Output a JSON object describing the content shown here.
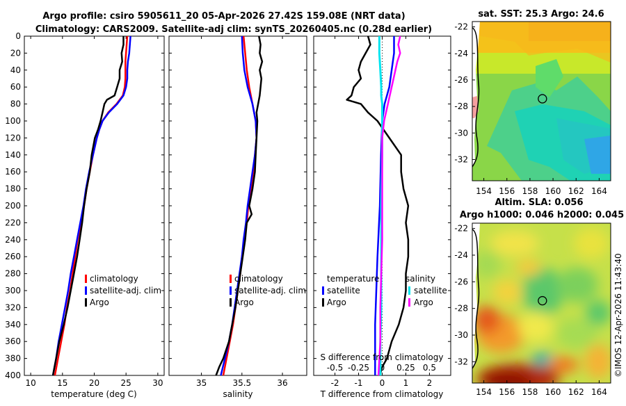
{
  "title": {
    "line1": "Argo profile: csiro 5905611_20 05-Apr-2026 27.42S 159.08E (NRT data)",
    "line2": "Climatology: CARS2009. Satellite-adj clim: synTS_20260405.nc (0.28d earlier)"
  },
  "watermark": "©IMOS 12-Apr-2026 11:43:40",
  "colors": {
    "clim": "#ff0000",
    "sat": "#0000ff",
    "argo": "#000000",
    "sal_sat": "#00e5f0",
    "sal_argo": "#ff00ff"
  },
  "chart_data": [
    {
      "type": "line",
      "name": "temperature-profile",
      "xlabel": "temperature (deg C)",
      "ylabel": "",
      "xlim": [
        9,
        31
      ],
      "ylim": [
        400,
        0
      ],
      "xticks": [
        "10",
        "15",
        "20",
        "25",
        "30"
      ],
      "yticks": [
        "0",
        "20",
        "40",
        "60",
        "80",
        "100",
        "120",
        "140",
        "160",
        "180",
        "200",
        "220",
        "240",
        "260",
        "280",
        "300",
        "320",
        "340",
        "360",
        "380",
        "400"
      ],
      "legend": [
        "climatology",
        "satellite-adj. clim",
        "Argo"
      ],
      "series": [
        {
          "name": "climatology",
          "depth": [
            0,
            10,
            20,
            30,
            40,
            50,
            60,
            70,
            80,
            90,
            100,
            110,
            120,
            140,
            160,
            180,
            200,
            220,
            240,
            260,
            280,
            300,
            320,
            340,
            360,
            380,
            400
          ],
          "values": [
            25.2,
            25.1,
            25.0,
            24.9,
            24.9,
            24.9,
            24.8,
            24.5,
            23.5,
            22.2,
            21.3,
            20.8,
            20.4,
            19.8,
            19.3,
            18.8,
            18.4,
            17.9,
            17.4,
            17.0,
            16.6,
            16.2,
            15.7,
            15.3,
            14.8,
            14.3,
            13.8
          ]
        },
        {
          "name": "satellite-adj. clim",
          "depth": [
            0,
            10,
            20,
            30,
            40,
            50,
            60,
            70,
            80,
            90,
            100,
            110,
            120,
            140,
            160,
            180,
            200,
            220,
            240,
            260,
            280,
            300,
            320,
            340,
            360,
            380,
            400
          ],
          "values": [
            25.7,
            25.6,
            25.5,
            25.3,
            25.2,
            25.2,
            25.0,
            24.6,
            23.6,
            22.3,
            21.3,
            20.8,
            20.4,
            19.8,
            19.2,
            18.7,
            18.3,
            17.8,
            17.3,
            16.8,
            16.3,
            15.9,
            15.4,
            14.9,
            14.4,
            14.0,
            13.5
          ]
        },
        {
          "name": "Argo",
          "depth": [
            0,
            10,
            20,
            30,
            40,
            50,
            60,
            70,
            75,
            80,
            90,
            100,
            110,
            120,
            140,
            160,
            180,
            200,
            220,
            240,
            260,
            280,
            300,
            320,
            340,
            360,
            380,
            400
          ],
          "values": [
            24.6,
            24.6,
            24.3,
            24.4,
            24.0,
            24.0,
            23.6,
            23.2,
            22.0,
            21.6,
            21.3,
            21.0,
            20.6,
            20.1,
            19.6,
            19.3,
            18.8,
            18.4,
            18.1,
            17.7,
            17.3,
            16.8,
            16.3,
            15.8,
            15.2,
            14.5,
            14.0,
            13.5
          ]
        }
      ]
    },
    {
      "type": "line",
      "name": "salinity-profile",
      "xlabel": "salinity",
      "xlim": [
        34.6,
        36.3
      ],
      "ylim": [
        400,
        0
      ],
      "xticks": [
        "35",
        "35.5",
        "36"
      ],
      "legend": [
        "climatology",
        "satellite-adj. clim",
        "Argo"
      ],
      "series": [
        {
          "name": "climatology",
          "depth": [
            0,
            20,
            40,
            60,
            80,
            100,
            120,
            140,
            160,
            180,
            200,
            220,
            240,
            260,
            280,
            300,
            320,
            340,
            360,
            380,
            400
          ],
          "values": [
            35.52,
            35.54,
            35.56,
            35.59,
            35.63,
            35.67,
            35.68,
            35.66,
            35.64,
            35.61,
            35.58,
            35.56,
            35.53,
            35.5,
            35.48,
            35.45,
            35.42,
            35.39,
            35.35,
            35.31,
            35.27
          ]
        },
        {
          "name": "satellite-adj. clim",
          "depth": [
            0,
            20,
            40,
            60,
            80,
            100,
            120,
            140,
            160,
            180,
            200,
            220,
            240,
            260,
            280,
            300,
            320,
            340,
            360,
            380,
            400
          ],
          "values": [
            35.5,
            35.51,
            35.53,
            35.57,
            35.63,
            35.67,
            35.68,
            35.66,
            35.63,
            35.6,
            35.57,
            35.55,
            35.52,
            35.5,
            35.47,
            35.44,
            35.41,
            35.38,
            35.34,
            35.29,
            35.24
          ]
        },
        {
          "name": "Argo",
          "depth": [
            0,
            10,
            20,
            30,
            40,
            50,
            60,
            70,
            80,
            90,
            100,
            120,
            140,
            160,
            180,
            200,
            210,
            220,
            240,
            260,
            280,
            300,
            320,
            340,
            360,
            380,
            390,
            400
          ],
          "values": [
            35.71,
            35.73,
            35.72,
            35.75,
            35.72,
            35.74,
            35.73,
            35.72,
            35.7,
            35.68,
            35.69,
            35.68,
            35.67,
            35.66,
            35.63,
            35.59,
            35.62,
            35.56,
            35.54,
            35.51,
            35.48,
            35.45,
            35.42,
            35.38,
            35.34,
            35.27,
            35.22,
            35.18
          ]
        }
      ]
    },
    {
      "type": "line",
      "name": "difference-profile",
      "xlabel": "T difference from climatology",
      "xlabel_top": "S difference from climatology",
      "xlim": [
        -2.9,
        2.9
      ],
      "ylim": [
        400,
        0
      ],
      "xticks": [
        "-2",
        "-1",
        "0",
        "1",
        "2"
      ],
      "xticks_s": [
        "-0.5",
        "-0.25",
        "0",
        "0.25",
        "0.5"
      ],
      "legend_left_title": "temperature",
      "legend_right_title": "salinity",
      "legend_left": [
        "satellite",
        "Argo"
      ],
      "legend_right": [
        "satellite",
        "Argo"
      ],
      "series": [
        {
          "name": "T satellite",
          "depth": [
            0,
            20,
            40,
            60,
            80,
            100,
            140,
            200,
            260,
            300,
            340,
            380,
            400
          ],
          "values": [
            0.5,
            0.5,
            0.4,
            0.3,
            0.1,
            0.0,
            -0.05,
            -0.1,
            -0.2,
            -0.25,
            -0.3,
            -0.3,
            -0.3
          ]
        },
        {
          "name": "T Argo",
          "depth": [
            0,
            10,
            20,
            30,
            40,
            50,
            60,
            70,
            75,
            80,
            90,
            100,
            120,
            140,
            160,
            180,
            200,
            220,
            240,
            260,
            280,
            300,
            320,
            340,
            360,
            380,
            390,
            400
          ],
          "values": [
            -0.6,
            -0.5,
            -0.7,
            -0.9,
            -1.0,
            -0.9,
            -1.2,
            -1.3,
            -1.5,
            -0.9,
            -0.6,
            -0.2,
            0.3,
            0.8,
            0.8,
            0.9,
            1.1,
            1.0,
            1.1,
            1.1,
            1.0,
            1.0,
            0.9,
            0.7,
            0.4,
            0.2,
            0.0,
            -0.1
          ]
        },
        {
          "name": "S satellite",
          "depth": [
            0,
            20,
            40,
            60,
            70,
            80,
            100,
            140,
            200,
            240,
            280,
            320,
            360,
            400
          ],
          "values": [
            -0.03,
            -0.03,
            -0.02,
            -0.01,
            -0.01,
            0.0,
            0.0,
            0.0,
            -0.01,
            -0.01,
            -0.01,
            -0.01,
            -0.02,
            -0.02
          ]
        },
        {
          "name": "S Argo",
          "depth": [
            0,
            10,
            20,
            30,
            40,
            60,
            80,
            100,
            120,
            160,
            200,
            240,
            280,
            320,
            360,
            380,
            400
          ],
          "values": [
            0.19,
            0.17,
            0.19,
            0.16,
            0.14,
            0.1,
            0.06,
            0.02,
            0.0,
            0.0,
            0.0,
            0.0,
            -0.01,
            -0.02,
            -0.02,
            -0.03,
            -0.04
          ]
        }
      ]
    },
    {
      "type": "heatmap",
      "name": "sst-map",
      "title": "sat. SST: 25.3 Argo: 24.6",
      "xticks": [
        "154",
        "156",
        "158",
        "160",
        "162",
        "164"
      ],
      "yticks": [
        "-22",
        "-24",
        "-26",
        "-28",
        "-30",
        "-32"
      ],
      "xlim": [
        153.0,
        165.0
      ],
      "ylim": [
        -33.6,
        -21.6
      ],
      "argo_position": [
        159.08,
        -27.42
      ]
    },
    {
      "type": "heatmap",
      "name": "sla-map",
      "title_line1": "Altim. SLA: 0.056",
      "title_line2": "Argo h1000: 0.046 h2000: 0.045",
      "xticks": [
        "154",
        "156",
        "158",
        "160",
        "162",
        "164"
      ],
      "yticks": [
        "-22",
        "-24",
        "-26",
        "-28",
        "-30",
        "-32"
      ],
      "xlim": [
        153.0,
        165.0
      ],
      "ylim": [
        -33.6,
        -21.6
      ],
      "argo_position": [
        159.08,
        -27.42
      ]
    }
  ]
}
